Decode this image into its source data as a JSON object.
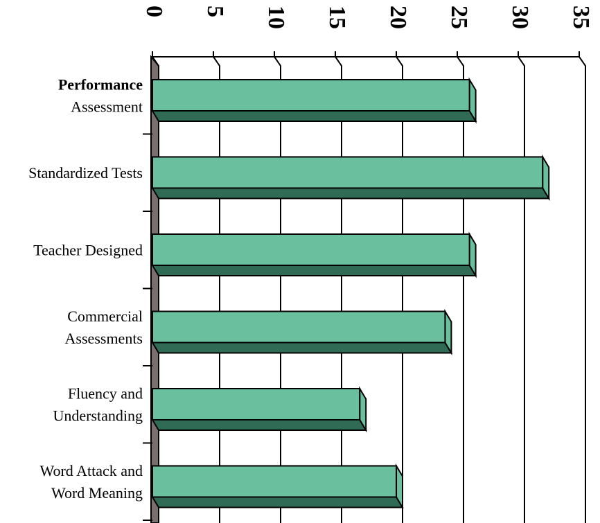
{
  "chart_data": {
    "type": "bar",
    "orientation": "horizontal",
    "categories": [
      [
        "Performance",
        "Assessment"
      ],
      [
        "Standardized Tests"
      ],
      [
        "Teacher Designed"
      ],
      [
        "Commercial",
        "Assessments"
      ],
      [
        "Fluency and",
        "Understanding"
      ],
      [
        "Word Attack and",
        "Word Meaning"
      ]
    ],
    "values": [
      26,
      32,
      26,
      24,
      17,
      20
    ],
    "color": "#6abf9f",
    "shade_color": "#2f6b55",
    "xlim": [
      0,
      35
    ],
    "xticks": [
      0,
      5,
      10,
      15,
      20,
      25,
      30,
      35
    ],
    "grid": true
  }
}
